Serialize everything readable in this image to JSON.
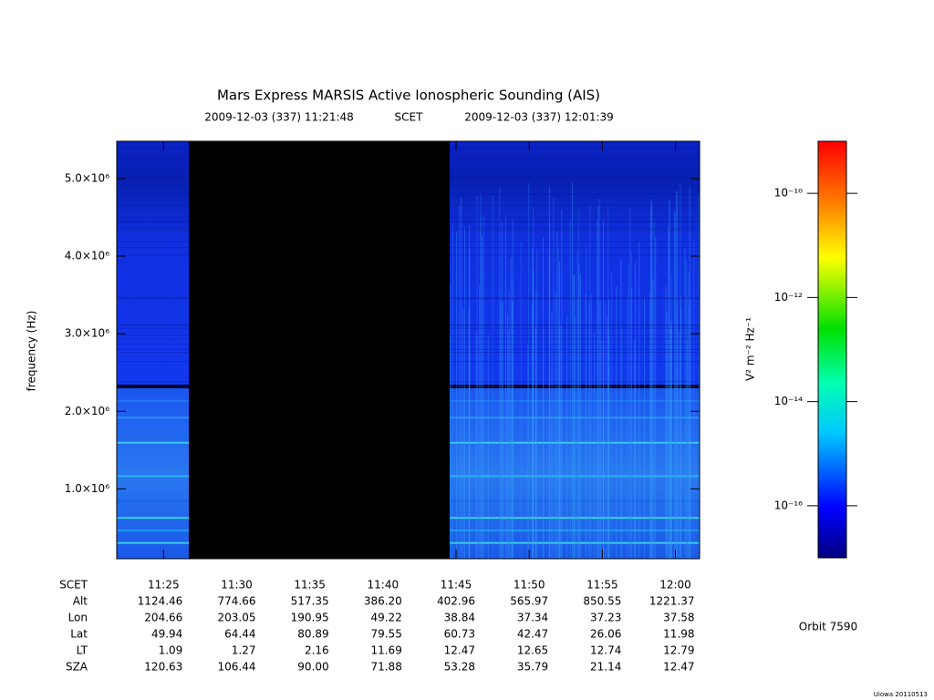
{
  "chart_data": {
    "type": "spectrogram",
    "title": "Mars Express MARSIS Active Ionospheric Sounding (AIS)",
    "start_time": "2009-12-03 (337) 11:21:48",
    "time_system": "SCET",
    "end_time": "2009-12-03 (337) 12:01:39",
    "ylabel": "frequency (Hz)",
    "ylim": [
      100000,
      5480000
    ],
    "yticks": [
      {
        "value": 1000000,
        "label": "1.0×10⁶"
      },
      {
        "value": 2000000,
        "label": "2.0×10⁶"
      },
      {
        "value": 3000000,
        "label": "3.0×10⁶"
      },
      {
        "value": 4000000,
        "label": "4.0×10⁶"
      },
      {
        "value": 5000000,
        "label": "5.0×10⁶"
      }
    ],
    "xlim": [
      "11:21:48",
      "12:01:39"
    ],
    "xlabel": "SCET",
    "xticks": [
      "11:25",
      "11:30",
      "11:35",
      "11:40",
      "11:45",
      "11:50",
      "11:55",
      "12:00"
    ],
    "ephemeris": [
      {
        "label": "Alt",
        "values": [
          "1124.46",
          "774.66",
          "517.35",
          "386.20",
          "402.96",
          "565.97",
          "850.55",
          "1221.37"
        ]
      },
      {
        "label": "Lon",
        "values": [
          "204.66",
          "203.05",
          "190.95",
          "49.22",
          "38.84",
          "37.34",
          "37.23",
          "37.58"
        ]
      },
      {
        "label": "Lat",
        "values": [
          "49.94",
          "64.44",
          "80.89",
          "79.55",
          "60.73",
          "42.47",
          "26.06",
          "11.98"
        ]
      },
      {
        "label": "LT",
        "values": [
          "1.09",
          "1.27",
          "2.16",
          "11.69",
          "12.47",
          "12.65",
          "12.74",
          "12.79"
        ]
      },
      {
        "label": "SZA",
        "values": [
          "120.63",
          "106.44",
          "90.00",
          "71.88",
          "53.28",
          "35.79",
          "21.14",
          "12.47"
        ]
      }
    ],
    "colorbar": {
      "label": "V² m⁻² Hz⁻¹",
      "log_scale": true,
      "clim": [
        1e-17,
        1e-09
      ],
      "ticks": [
        {
          "value": 1e-10,
          "label": "10⁻¹⁰"
        },
        {
          "value": 1e-12,
          "label": "10⁻¹²"
        },
        {
          "value": 1e-14,
          "label": "10⁻¹⁴"
        },
        {
          "value": 1e-16,
          "label": "10⁻¹⁶"
        }
      ]
    },
    "orbit": "Orbit 7590",
    "credit": "Uiowa 20110513"
  }
}
